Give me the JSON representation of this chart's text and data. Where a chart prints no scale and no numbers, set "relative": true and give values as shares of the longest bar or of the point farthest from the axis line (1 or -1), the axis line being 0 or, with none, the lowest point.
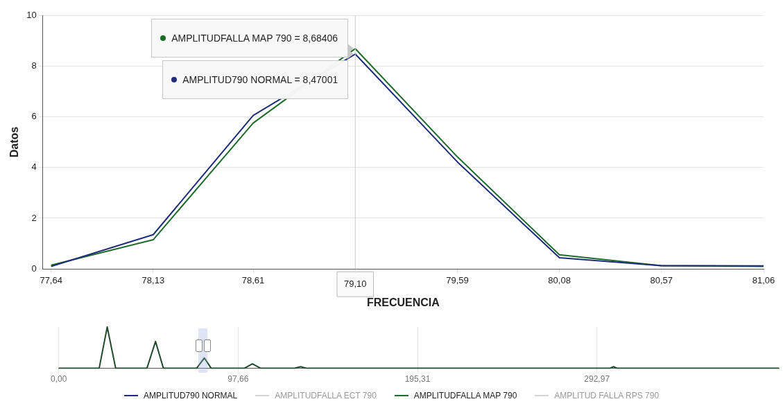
{
  "chart_data": [
    {
      "type": "line",
      "xlabel": "FRECUENCIA",
      "ylabel": "Datos",
      "x": [
        77.64,
        78.13,
        78.61,
        79.1,
        79.59,
        80.08,
        80.57,
        81.06
      ],
      "series": [
        {
          "name": "AMPLITUD790 NORMAL",
          "color": "#1f2d7a",
          "values": [
            0.1,
            1.35,
            6.05,
            8.47001,
            4.22,
            0.44,
            0.13,
            0.12
          ]
        },
        {
          "name": "AMPLITUDFALLA ECT 790",
          "color": "#d4d4d4",
          "values": [
            null,
            null,
            null,
            null,
            null,
            null,
            null,
            null
          ]
        },
        {
          "name": "AMPLITUDFALLA MAP 790",
          "color": "#1e6b2a",
          "values": [
            0.15,
            1.15,
            5.75,
            8.68406,
            4.42,
            0.56,
            0.13,
            0.1
          ]
        },
        {
          "name": "AMPLITUD FALLA RPS 790",
          "color": "#d4d4d4",
          "values": [
            null,
            null,
            null,
            null,
            null,
            null,
            null,
            null
          ]
        }
      ],
      "xlim": [
        77.6,
        81.06
      ],
      "xticks": [
        {
          "value": 77.64,
          "label": "77,64"
        },
        {
          "value": 78.13,
          "label": "78,13"
        },
        {
          "value": 78.61,
          "label": "78,61"
        },
        {
          "value": 79.1,
          "label": null
        },
        {
          "value": 79.59,
          "label": "79,59"
        },
        {
          "value": 80.08,
          "label": "80,08"
        },
        {
          "value": 80.57,
          "label": "80,57"
        },
        {
          "value": 81.06,
          "label": "81,06"
        }
      ],
      "ylim": [
        0,
        10
      ],
      "yticks": [
        0,
        2,
        4,
        6,
        8,
        10
      ],
      "ref_lines": [
        {
          "axis": "x",
          "value": 79.1,
          "label": "79,10",
          "color": "#cccccc"
        }
      ],
      "annotations": [
        {
          "text": "AMPLITUDFALLA MAP 790 = 8,68406",
          "x": 79.1,
          "y": 8.68406
        },
        {
          "text": "AMPLITUD790 NORMAL = 8,47001",
          "x": 79.1,
          "y": 8.47001
        }
      ],
      "grid": "y",
      "legend": "bottom",
      "marker": "none",
      "line_style": "solid"
    },
    {
      "type": "line",
      "relative": true,
      "x": [
        0,
        22,
        26.4,
        31,
        48,
        52.7,
        57,
        75,
        79.3,
        83,
        101,
        105.4,
        110,
        128,
        131.7,
        135,
        230,
        300,
        302,
        304,
        392
      ],
      "series": [
        {
          "color": "#1e4a2a",
          "values": [
            0,
            0,
            1,
            0,
            0,
            0.65,
            0,
            0,
            0.25,
            0,
            0,
            0.11,
            0,
            0,
            0.04,
            0,
            0,
            0,
            0.04,
            0,
            0
          ]
        }
      ],
      "xlim": [
        0,
        392
      ],
      "xticks": [
        {
          "value": 0,
          "label": "0,00"
        },
        {
          "value": 97.66,
          "label": "97,66"
        },
        {
          "value": 195.31,
          "label": "195,31"
        },
        {
          "value": 292.97,
          "label": "292,97"
        }
      ],
      "grid": "x",
      "marker": "none",
      "line_style": "solid"
    }
  ]
}
